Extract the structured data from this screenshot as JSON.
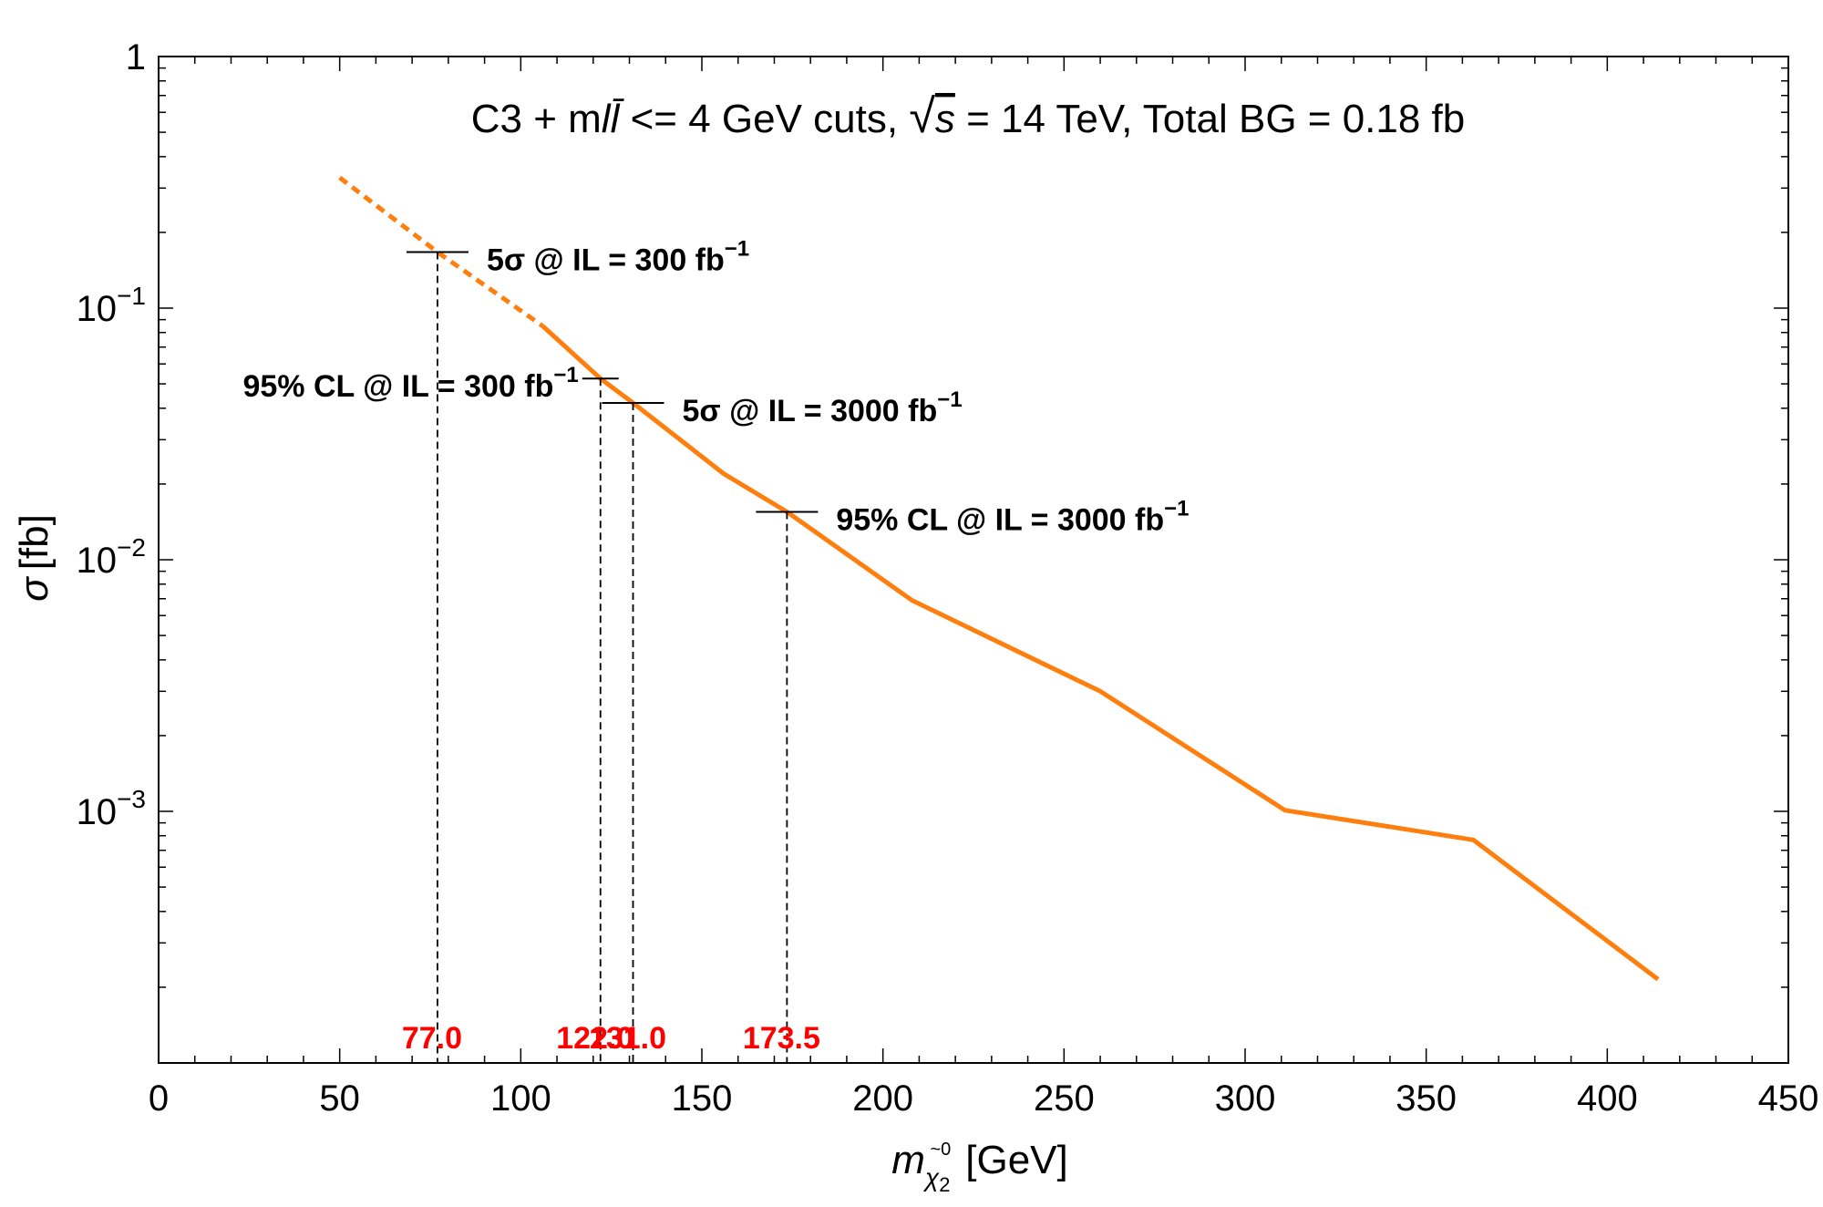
{
  "chart_data": {
    "type": "line",
    "title": "C3 + mll̄ <= 4 GeV cuts, √s = 14 TeV, Total BG = 0.18 fb",
    "title_parts": {
      "prefix": "C3 + m",
      "ll": "ll̄",
      "mid": " <= 4 GeV cuts, ",
      "sqrt": "√",
      "s": "s",
      "suffix": " = 14 TeV, Total BG = 0.18 fb"
    },
    "xlabel": "mχ̃₂⁰ [GeV]",
    "xlabel_parts": {
      "m": "m",
      "sub": "χ",
      "sub2": "2",
      "sup": "~0",
      "unit": "[GeV]"
    },
    "ylabel": "σ [fb]",
    "ylabel_parts": {
      "sigma": "σ",
      "unit": "[fb]"
    },
    "xlim": [
      0,
      450
    ],
    "ylim": [
      0.0001,
      1
    ],
    "yscale": "log",
    "x_ticks": [
      "0",
      "50",
      "100",
      "150",
      "200",
      "250",
      "300",
      "350",
      "400",
      "450"
    ],
    "y_ticks": [
      {
        "base": "1",
        "exp": ""
      },
      {
        "base": "10",
        "exp": "−1"
      },
      {
        "base": "10",
        "exp": "−2"
      },
      {
        "base": "10",
        "exp": "−3"
      }
    ],
    "line_color": "#ff7f0e",
    "series": [
      {
        "name": "dashed extrapolation",
        "style": "dashed",
        "x": [
          50,
          77,
          106
        ],
        "y": [
          0.33,
          0.167,
          0.085
        ]
      },
      {
        "name": "cross section",
        "style": "solid",
        "x": [
          106,
          122,
          131,
          156,
          173.5,
          208,
          260,
          311,
          363,
          414
        ],
        "y": [
          0.085,
          0.0525,
          0.042,
          0.022,
          0.0155,
          0.0069,
          0.003,
          0.00101,
          0.00077,
          0.000215
        ]
      }
    ],
    "markers": [
      {
        "x": 77.0,
        "y": 0.167,
        "label": "77.0",
        "annotation": "5σ @ IL = 300 fb",
        "sup": "−1",
        "side": "right"
      },
      {
        "x": 122.0,
        "y": 0.0525,
        "label": "122.0",
        "annotation": "95% CL @ IL = 300 fb",
        "sup": "−1",
        "side": "left"
      },
      {
        "x": 131.0,
        "y": 0.042,
        "label": "131.0",
        "annotation": "5σ @ IL = 3000 fb",
        "sup": "−1",
        "side": "right"
      },
      {
        "x": 173.5,
        "y": 0.0155,
        "label": "173.5",
        "annotation": "95% CL @ IL = 3000 fb",
        "sup": "−1",
        "side": "right"
      }
    ],
    "marker_label_color": "#ff0000"
  }
}
